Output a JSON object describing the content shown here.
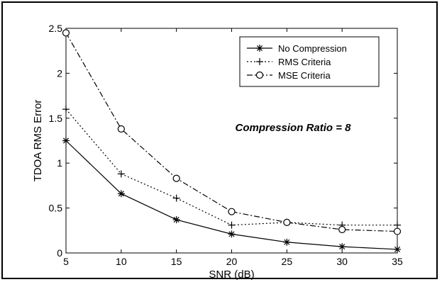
{
  "chart_data": {
    "type": "line",
    "title": "",
    "xlabel": "SNR (dB)",
    "ylabel": "TDOA RMS Error",
    "x": [
      5,
      10,
      15,
      20,
      25,
      30,
      35
    ],
    "xlim": [
      5,
      35
    ],
    "ylim": [
      0,
      2.5
    ],
    "xticks": [
      "5",
      "10",
      "15",
      "20",
      "25",
      "30",
      "35"
    ],
    "yticks": [
      "0",
      "0.5",
      "1",
      "1.5",
      "2",
      "2.5"
    ],
    "grid": false,
    "legend_position": "top-right",
    "annotation": "Compression Ratio = 8",
    "series": [
      {
        "name": "No Compression",
        "marker": "asterisk",
        "line_style": "solid",
        "values": [
          1.25,
          0.66,
          0.37,
          0.21,
          0.12,
          0.07,
          0.04
        ]
      },
      {
        "name": "RMS Criteria",
        "marker": "plus",
        "line_style": "dotted",
        "values": [
          1.6,
          0.88,
          0.61,
          0.31,
          0.34,
          0.31,
          0.31
        ]
      },
      {
        "name": "MSE Criteria",
        "marker": "circle",
        "line_style": "dash-dot",
        "values": [
          2.45,
          1.38,
          0.83,
          0.46,
          0.34,
          0.26,
          0.24
        ]
      }
    ]
  }
}
